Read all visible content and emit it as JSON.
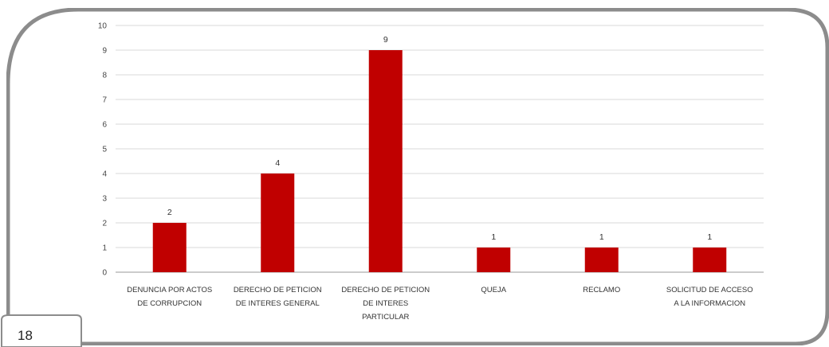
{
  "page_number": "18",
  "colors": {
    "bar": "#c00000",
    "frame": "#8c8c8c",
    "grid": "#d9d9d9"
  },
  "chart_data": {
    "type": "bar",
    "categories": [
      [
        "DENUNCIA POR ACTOS",
        "DE CORRUPCION"
      ],
      [
        "DERECHO DE PETICION",
        "DE INTERES GENERAL"
      ],
      [
        "DERECHO DE PETICION",
        "DE INTERES",
        "PARTICULAR"
      ],
      [
        "QUEJA"
      ],
      [
        "RECLAMO"
      ],
      [
        "SOLICITUD DE ACCESO",
        "A LA INFORMACION"
      ]
    ],
    "values": [
      2,
      4,
      9,
      1,
      1,
      1
    ],
    "data_labels": [
      "2",
      "4",
      "9",
      "1",
      "1",
      "1"
    ],
    "yticks": [
      "0",
      "1",
      "2",
      "3",
      "4",
      "5",
      "6",
      "7",
      "8",
      "9",
      "10"
    ],
    "ylim": [
      0,
      10
    ],
    "grid": true,
    "legend": "none",
    "title": "",
    "xlabel": "",
    "ylabel": ""
  }
}
